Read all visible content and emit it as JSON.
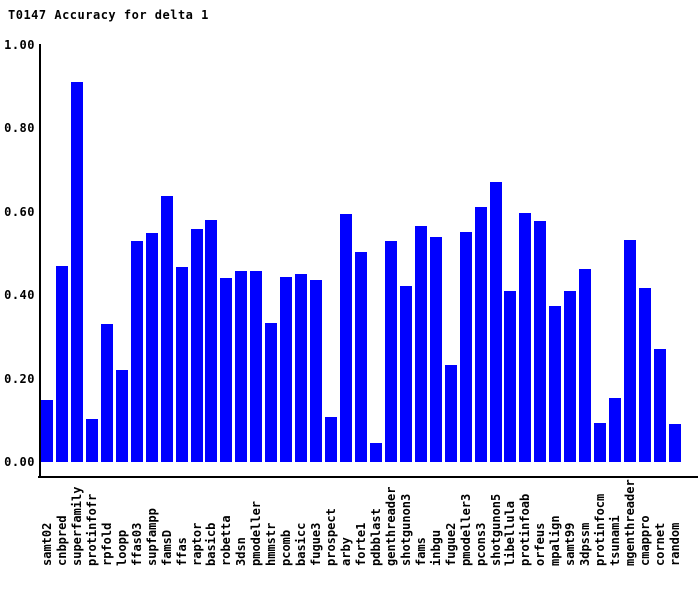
{
  "title": "T0147 Accuracy for delta 1",
  "colors": {
    "bar": "#0000ff",
    "axis": "#000000",
    "text": "#000000",
    "background": "#ffffff"
  },
  "chart_data": {
    "type": "bar",
    "title": "T0147 Accuracy for delta 1",
    "xlabel": "",
    "ylabel": "",
    "ylim": [
      0.0,
      1.0
    ],
    "yticks": [
      "0.00",
      "0.20",
      "0.40",
      "0.60",
      "0.80",
      "1.00"
    ],
    "ytick_values": [
      0.0,
      0.2,
      0.4,
      0.6,
      0.8,
      1.0
    ],
    "grid": false,
    "legend": "none",
    "bar_color": "#0000ff",
    "categories": [
      "samt02",
      "cnbpred",
      "superfamily",
      "protinfofr",
      "rpfold",
      "loopp",
      "ffas03",
      "supfampp",
      "famsD",
      "ffas",
      "raptor",
      "basicb",
      "robetta",
      "3dsn",
      "pmodeller",
      "hmmstr",
      "pcomb",
      "basicc",
      "fugue3",
      "prospect",
      "arby",
      "forte1",
      "pdbblast",
      "genthreader",
      "shotgunon3",
      "fams",
      "inbgu",
      "fugue2",
      "pmodeller3",
      "pcons3",
      "shotgunon5",
      "libellula",
      "protinfoab",
      "orfeus",
      "mpalign",
      "samt99",
      "3dpssm",
      "protinfocm",
      "tsunami",
      "mgenthreader",
      "cmappro",
      "cornet",
      "random"
    ],
    "values": [
      0.149,
      0.47,
      0.912,
      0.103,
      0.331,
      0.22,
      0.531,
      0.549,
      0.638,
      0.467,
      0.558,
      0.58,
      0.442,
      0.458,
      0.458,
      0.334,
      0.444,
      0.452,
      0.436,
      0.109,
      0.595,
      0.504,
      0.045,
      0.531,
      0.422,
      0.566,
      0.539,
      0.233,
      0.551,
      0.612,
      0.671,
      0.41,
      0.598,
      0.578,
      0.373,
      0.409,
      0.463,
      0.093,
      0.153,
      0.532,
      0.418,
      0.27,
      0.091
    ]
  }
}
